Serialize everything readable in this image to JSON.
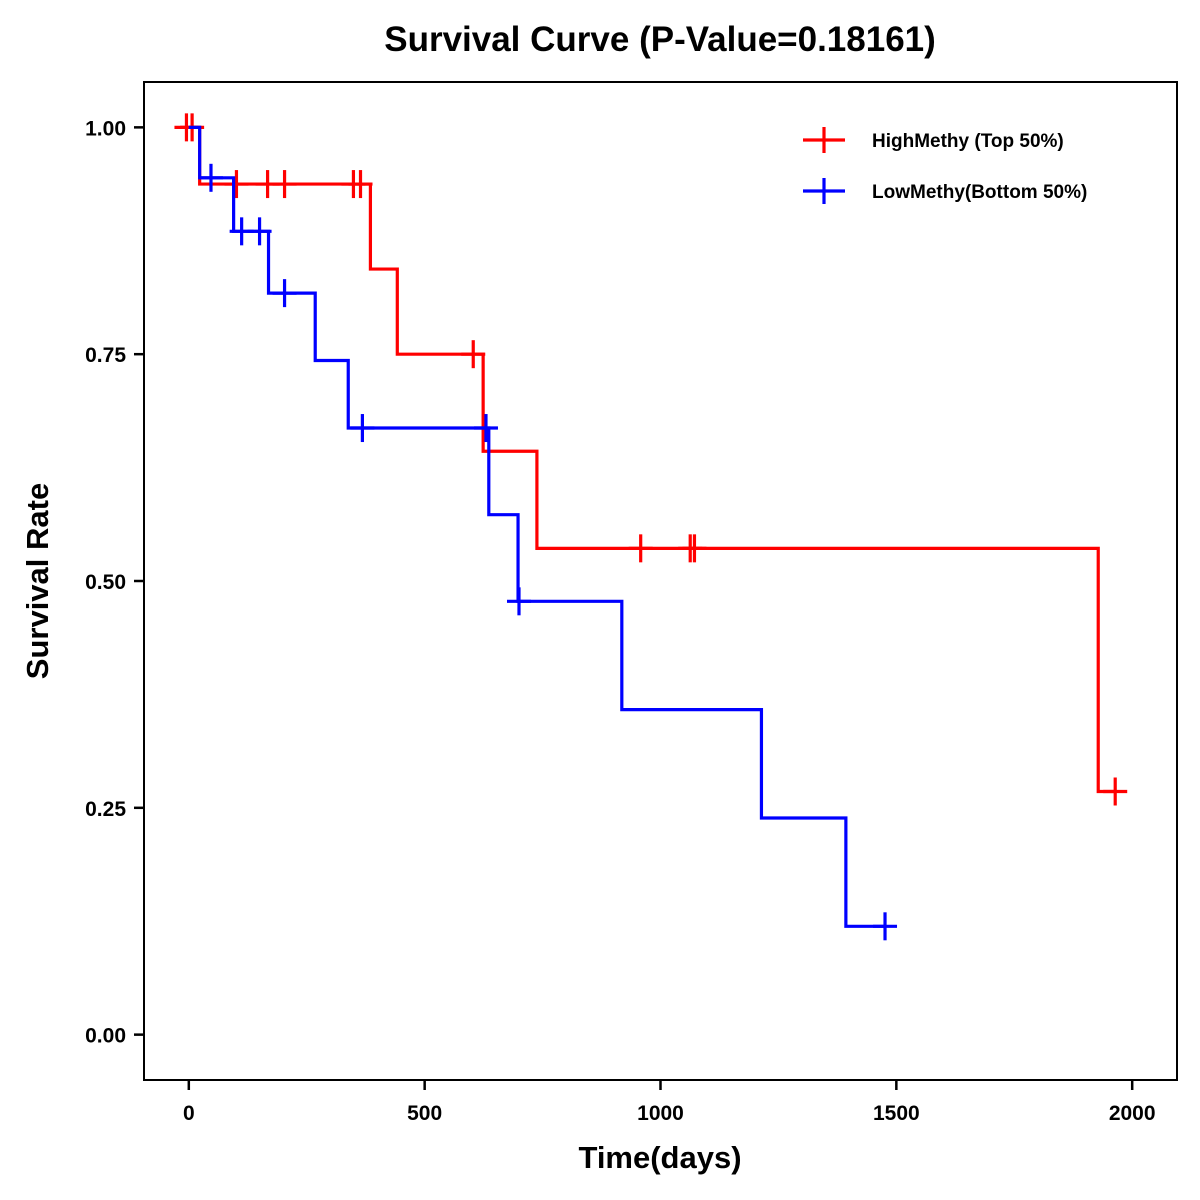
{
  "chart_data": {
    "type": "line",
    "subtype": "kaplan-meier-step",
    "title": "Survival Curve (P-Value=0.18161)",
    "xlabel": "Time(days)",
    "ylabel": "Survival Rate",
    "xlim": [
      -95,
      2095
    ],
    "ylim": [
      -0.05,
      1.05
    ],
    "xticks": [
      0,
      500,
      1000,
      1500,
      2000
    ],
    "xtick_labels": [
      "0",
      "500",
      "1000",
      "1500",
      "2000"
    ],
    "yticks": [
      0,
      0.25,
      0.5,
      0.75,
      1.0
    ],
    "ytick_labels": [
      "0.00",
      "0.25",
      "0.50",
      "0.75",
      "1.00"
    ],
    "grid": false,
    "legend_position": "top-right",
    "series": [
      {
        "name": "HighMethy (Top 50%)",
        "color": "#ff0000",
        "steps": [
          {
            "t": 0,
            "s": 1.0
          },
          {
            "t": 23,
            "s": 0.9375
          },
          {
            "t": 385,
            "s": 0.8438
          },
          {
            "t": 442,
            "s": 0.75
          },
          {
            "t": 624,
            "s": 0.643
          },
          {
            "t": 738,
            "s": 0.536
          },
          {
            "t": 1928,
            "s": 0.268
          }
        ],
        "end_time": 1964,
        "censored": [
          {
            "t": -5,
            "s": 1.0
          },
          {
            "t": 7,
            "s": 1.0
          },
          {
            "t": 101,
            "s": 0.9375
          },
          {
            "t": 167,
            "s": 0.9375
          },
          {
            "t": 203,
            "s": 0.9375
          },
          {
            "t": 349,
            "s": 0.9375
          },
          {
            "t": 364,
            "s": 0.9375
          },
          {
            "t": 603,
            "s": 0.75
          },
          {
            "t": 958,
            "s": 0.536
          },
          {
            "t": 1063,
            "s": 0.536
          },
          {
            "t": 1072,
            "s": 0.536
          },
          {
            "t": 1964,
            "s": 0.268
          }
        ]
      },
      {
        "name": "LowMethy(Bottom 50%)",
        "color": "#0000ff",
        "steps": [
          {
            "t": 0,
            "s": 1.0
          },
          {
            "t": 23,
            "s": 0.9444
          },
          {
            "t": 95,
            "s": 0.8854
          },
          {
            "t": 169,
            "s": 0.8173
          },
          {
            "t": 268,
            "s": 0.743
          },
          {
            "t": 338,
            "s": 0.6686
          },
          {
            "t": 636,
            "s": 0.5731
          },
          {
            "t": 698,
            "s": 0.4776
          },
          {
            "t": 918,
            "s": 0.3582
          },
          {
            "t": 1214,
            "s": 0.2388
          },
          {
            "t": 1393,
            "s": 0.1194
          }
        ],
        "end_time": 1476,
        "censored": [
          {
            "t": 47,
            "s": 0.9444
          },
          {
            "t": 112,
            "s": 0.8854
          },
          {
            "t": 150,
            "s": 0.8854
          },
          {
            "t": 203,
            "s": 0.8173
          },
          {
            "t": 368,
            "s": 0.6686
          },
          {
            "t": 630,
            "s": 0.6686
          },
          {
            "t": 700,
            "s": 0.4776
          },
          {
            "t": 1476,
            "s": 0.1194
          }
        ]
      }
    ]
  }
}
